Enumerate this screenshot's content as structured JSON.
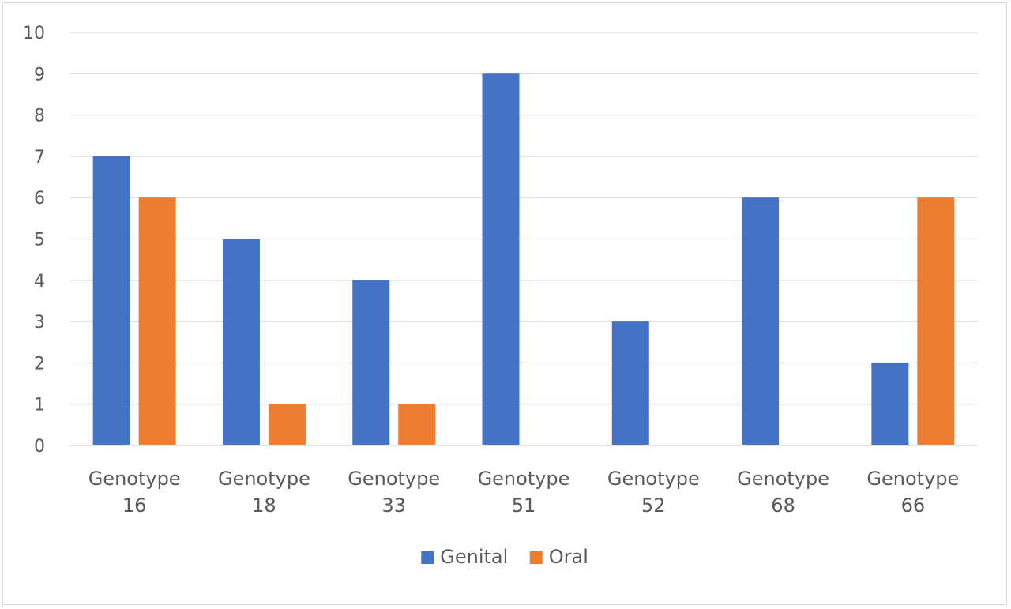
{
  "chart_data": {
    "type": "bar",
    "categories": [
      [
        "Genotype",
        "16"
      ],
      [
        "Genotype",
        "18"
      ],
      [
        "Genotype",
        "33"
      ],
      [
        "Genotype",
        "51"
      ],
      [
        "Genotype",
        "52"
      ],
      [
        "Genotype",
        "68"
      ],
      [
        "Genotype",
        "66"
      ]
    ],
    "series": [
      {
        "name": "Genital",
        "color": "#4472c4",
        "values": [
          7,
          5,
          4,
          9,
          3,
          6,
          2
        ]
      },
      {
        "name": "Oral",
        "color": "#ed7d31",
        "values": [
          6,
          1,
          1,
          0,
          0,
          0,
          6
        ]
      }
    ],
    "ylim": [
      0,
      10
    ],
    "yticks": [
      0,
      1,
      2,
      3,
      4,
      5,
      6,
      7,
      8,
      9,
      10
    ],
    "grid": true,
    "legend_position": "bottom"
  }
}
